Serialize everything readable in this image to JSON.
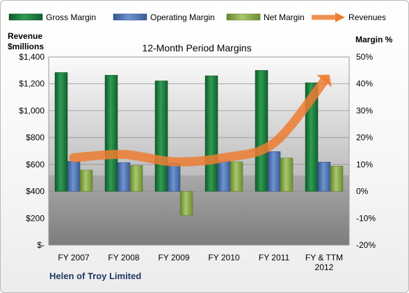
{
  "chart_data": {
    "type": "bar",
    "title": "12-Month Period Margins",
    "company": "Helen of Troy Limited",
    "y_left_label": [
      "Revenue",
      "$millions"
    ],
    "y_right_label": "Margin %",
    "y_left_range": [
      0,
      1400
    ],
    "y_right_range": [
      -20,
      50
    ],
    "y_left_ticks": [
      "$-",
      "$200",
      "$400",
      "$600",
      "$800",
      "$1,000",
      "$1,200",
      "$1,400"
    ],
    "y_right_ticks": [
      "-20%",
      "-10%",
      "0%",
      "10%",
      "20%",
      "30%",
      "40%",
      "50%"
    ],
    "categories": [
      [
        "FY 2007"
      ],
      [
        "FY 2008"
      ],
      [
        "FY 2009"
      ],
      [
        "FY 2010"
      ],
      [
        "FY 2011"
      ],
      [
        "FY & TTM",
        "2012"
      ]
    ],
    "series": [
      {
        "name": "Gross Margin",
        "axis": "right",
        "kind": "bar",
        "color": "#1f7a3e",
        "values": [
          44.2,
          43.2,
          41.1,
          43.0,
          45.0,
          40.4
        ]
      },
      {
        "name": "Operating Margin",
        "axis": "right",
        "kind": "bar",
        "color": "#4f74b3",
        "values": [
          11.2,
          10.7,
          10.5,
          11.3,
          14.8,
          10.9
        ]
      },
      {
        "name": "Net Margin",
        "axis": "right",
        "kind": "bar",
        "color": "#8bb04a",
        "values": [
          7.9,
          9.6,
          -8.9,
          11.0,
          12.4,
          9.4
        ]
      },
      {
        "name": "Revenues",
        "axis": "left",
        "kind": "line",
        "color": "#ed7d31",
        "values": [
          650,
          675,
          620,
          650,
          760,
          1220
        ]
      }
    ],
    "grid": true,
    "legend_position": "top"
  }
}
